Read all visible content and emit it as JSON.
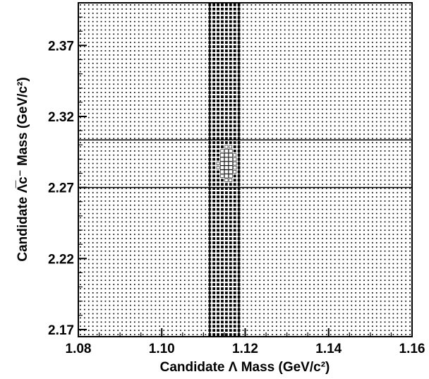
{
  "chart_data": {
    "type": "heatmap",
    "title": "",
    "xlabel": "Candidate Λ Mass (GeV/c²)",
    "ylabel": "Candidate Λ̅c⁻ Mass (GeV/c²)",
    "xlim": [
      1.08,
      1.16
    ],
    "ylim": [
      2.165,
      2.4
    ],
    "xticks": [
      {
        "value": 1.08,
        "label": "1.08"
      },
      {
        "value": 1.1,
        "label": "1.10"
      },
      {
        "value": 1.12,
        "label": "1.12"
      },
      {
        "value": 1.14,
        "label": "1.14"
      },
      {
        "value": 1.16,
        "label": "1.16"
      }
    ],
    "yticks": [
      {
        "value": 2.17,
        "label": "2.17"
      },
      {
        "value": 2.22,
        "label": "2.22"
      },
      {
        "value": 2.27,
        "label": "2.27"
      },
      {
        "value": 2.32,
        "label": "2.32"
      },
      {
        "value": 2.37,
        "label": "2.37"
      }
    ],
    "signal_region": {
      "x": [
        1.1115,
        1.1185
      ],
      "y": [
        2.27,
        2.3035
      ]
    },
    "peak": {
      "x": 1.1157,
      "y": 2.2865
    },
    "background_level": 1,
    "band_level": 4,
    "signal_level": 9,
    "grid": false,
    "legend": "none",
    "color": "#000000"
  }
}
